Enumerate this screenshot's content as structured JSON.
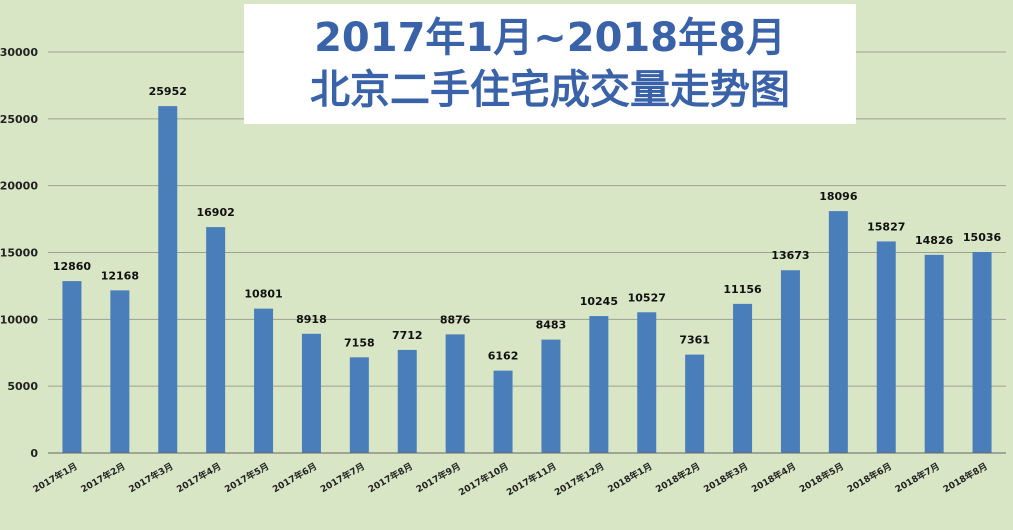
{
  "chart_data": {
    "type": "bar",
    "title": "2017年1月~2018年8月",
    "subtitle": "北京二手住宅成交量走势图",
    "categories": [
      "2017年1月",
      "2017年2月",
      "2017年3月",
      "2017年4月",
      "2017年5月",
      "2017年6月",
      "2017年7月",
      "2017年8月",
      "2017年9月",
      "2017年10月",
      "2017年11月",
      "2017年12月",
      "2018年1月",
      "2018年2月",
      "2018年3月",
      "2018年4月",
      "2018年5月",
      "2018年6月",
      "2018年7月",
      "2018年8月"
    ],
    "values": [
      12860,
      12168,
      25952,
      16902,
      10801,
      8918,
      7158,
      7712,
      8876,
      6162,
      8483,
      10245,
      10527,
      7361,
      11156,
      13673,
      18096,
      15827,
      14826,
      15036
    ],
    "yticks": [
      "0",
      "5000",
      "10000",
      "15000",
      "20000",
      "25000",
      "30000"
    ],
    "ylim": [
      0,
      30000
    ],
    "grid": true,
    "bar_color": "#4a7ebb",
    "background_color": "#d9e6c5",
    "grid_color": "#9aa48d",
    "title_color": "#3a62a8"
  }
}
